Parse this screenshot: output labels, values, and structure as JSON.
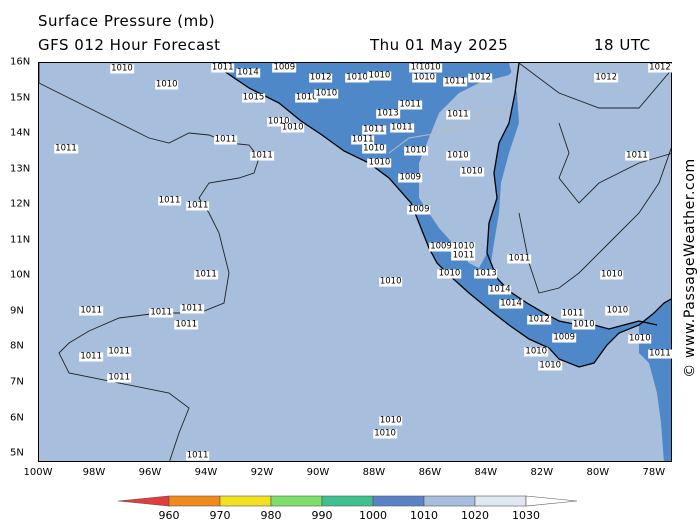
{
  "header": {
    "title": "Surface Pressure (mb)",
    "subtitle": "GFS 012 Hour Forecast",
    "date": "Thu 01 May 2025",
    "time": "18 UTC"
  },
  "watermark": "© www.PassageWeather.com",
  "map": {
    "ocean_color": "#a7bfdc",
    "land_color": "#4f88c9",
    "x_ticks": [
      "100W",
      "98W",
      "96W",
      "94W",
      "92W",
      "90W",
      "88W",
      "86W",
      "84W",
      "82W",
      "80W",
      "78W"
    ],
    "y_ticks": [
      "16N",
      "15N",
      "14N",
      "13N",
      "12N",
      "11N",
      "10N",
      "9N",
      "8N",
      "7N",
      "6N",
      "5N"
    ],
    "isobar_labels": [
      {
        "text": "1010",
        "lon": -97.0,
        "lat": 15.8
      },
      {
        "text": "1010",
        "lon": -95.4,
        "lat": 15.35
      },
      {
        "text": "1011",
        "lon": -93.4,
        "lat": 15.9
      },
      {
        "text": "1014",
        "lon": -92.5,
        "lat": 15.7
      },
      {
        "text": "1009",
        "lon": -91.2,
        "lat": 15.9
      },
      {
        "text": "1015",
        "lon": -92.3,
        "lat": 15.0
      },
      {
        "text": "1012",
        "lon": -89.9,
        "lat": 15.55
      },
      {
        "text": "1010",
        "lon": -88.6,
        "lat": 15.55
      },
      {
        "text": "1010",
        "lon": -87.8,
        "lat": 15.6
      },
      {
        "text": "1010",
        "lon": -90.4,
        "lat": 15.0
      },
      {
        "text": "1010",
        "lon": -89.7,
        "lat": 15.1
      },
      {
        "text": "1012",
        "lon": -86.3,
        "lat": 15.9
      },
      {
        "text": "1010",
        "lon": -86.0,
        "lat": 15.85
      },
      {
        "text": "1010",
        "lon": -86.2,
        "lat": 15.55
      },
      {
        "text": "1011",
        "lon": -85.1,
        "lat": 15.45
      },
      {
        "text": "1012",
        "lon": -84.2,
        "lat": 15.55
      },
      {
        "text": "1011",
        "lon": -86.7,
        "lat": 14.8
      },
      {
        "text": "1013",
        "lon": -87.5,
        "lat": 14.55
      },
      {
        "text": "1011",
        "lon": -88.0,
        "lat": 14.1
      },
      {
        "text": "1011",
        "lon": -87.0,
        "lat": 14.15
      },
      {
        "text": "1011",
        "lon": -88.4,
        "lat": 13.8
      },
      {
        "text": "1010",
        "lon": -88.0,
        "lat": 13.55
      },
      {
        "text": "1010",
        "lon": -86.5,
        "lat": 13.5
      },
      {
        "text": "1010",
        "lon": -91.4,
        "lat": 14.3
      },
      {
        "text": "1010",
        "lon": -90.9,
        "lat": 14.15
      },
      {
        "text": "1011",
        "lon": -85.0,
        "lat": 14.5
      },
      {
        "text": "1010",
        "lon": -85.0,
        "lat": 13.35
      },
      {
        "text": "1010",
        "lon": -84.5,
        "lat": 12.9
      },
      {
        "text": "1010",
        "lon": -87.8,
        "lat": 13.15
      },
      {
        "text": "1009",
        "lon": -86.7,
        "lat": 12.75
      },
      {
        "text": "1009",
        "lon": -86.4,
        "lat": 11.85
      },
      {
        "text": "1009",
        "lon": -85.6,
        "lat": 10.8
      },
      {
        "text": "1010",
        "lon": -84.8,
        "lat": 10.8
      },
      {
        "text": "1011",
        "lon": -84.8,
        "lat": 10.55
      },
      {
        "text": "1010",
        "lon": -85.3,
        "lat": 10.05
      },
      {
        "text": "1013",
        "lon": -84.0,
        "lat": 10.05
      },
      {
        "text": "1014",
        "lon": -83.5,
        "lat": 9.6
      },
      {
        "text": "1014",
        "lon": -83.1,
        "lat": 9.2
      },
      {
        "text": "1011",
        "lon": -82.8,
        "lat": 10.45
      },
      {
        "text": "1012",
        "lon": -82.1,
        "lat": 8.75
      },
      {
        "text": "1011",
        "lon": -80.9,
        "lat": 8.9
      },
      {
        "text": "1010",
        "lon": -80.5,
        "lat": 8.6
      },
      {
        "text": "1009",
        "lon": -81.2,
        "lat": 8.25
      },
      {
        "text": "1010",
        "lon": -82.2,
        "lat": 7.85
      },
      {
        "text": "1010",
        "lon": -81.7,
        "lat": 7.45
      },
      {
        "text": "1010",
        "lon": -79.3,
        "lat": 9.0
      },
      {
        "text": "1010",
        "lon": -78.5,
        "lat": 8.2
      },
      {
        "text": "1011",
        "lon": -77.6,
        "lat": 7.8
      },
      {
        "text": "1010",
        "lon": -79.5,
        "lat": 10.0
      },
      {
        "text": "1012",
        "lon": -79.7,
        "lat": 15.55
      },
      {
        "text": "1012",
        "lon": -77.7,
        "lat": 15.95
      },
      {
        "text": "1011",
        "lon": -78.6,
        "lat": 13.35
      },
      {
        "text": "1011",
        "lon": -99.0,
        "lat": 13.55
      },
      {
        "text": "1011",
        "lon": -93.3,
        "lat": 13.8
      },
      {
        "text": "1011",
        "lon": -92.0,
        "lat": 13.35
      },
      {
        "text": "1011",
        "lon": -95.3,
        "lat": 12.1
      },
      {
        "text": "1011",
        "lon": -94.3,
        "lat": 11.95
      },
      {
        "text": "1011",
        "lon": -94.0,
        "lat": 10.0
      },
      {
        "text": "1011",
        "lon": -98.1,
        "lat": 9.0
      },
      {
        "text": "1011",
        "lon": -95.6,
        "lat": 8.95
      },
      {
        "text": "1011",
        "lon": -94.5,
        "lat": 9.05
      },
      {
        "text": "1011",
        "lon": -94.7,
        "lat": 8.6
      },
      {
        "text": "1011",
        "lon": -98.1,
        "lat": 7.7
      },
      {
        "text": "1011",
        "lon": -97.1,
        "lat": 7.85
      },
      {
        "text": "1011",
        "lon": -97.1,
        "lat": 7.1
      },
      {
        "text": "1010",
        "lon": -87.4,
        "lat": 9.8
      },
      {
        "text": "1010",
        "lon": -87.4,
        "lat": 5.9
      },
      {
        "text": "1010",
        "lon": -87.6,
        "lat": 5.55
      },
      {
        "text": "1011",
        "lon": -94.3,
        "lat": 4.9
      }
    ]
  },
  "colorbar": {
    "labels": [
      "960",
      "970",
      "980",
      "990",
      "1000",
      "1010",
      "1020",
      "1030"
    ],
    "colors": [
      "#e23c3c",
      "#f08a1c",
      "#f2e21e",
      "#7ee06c",
      "#3ec18e",
      "#5b84c8",
      "#a7bfdc",
      "#dfe7f3",
      "#ffffff"
    ]
  }
}
